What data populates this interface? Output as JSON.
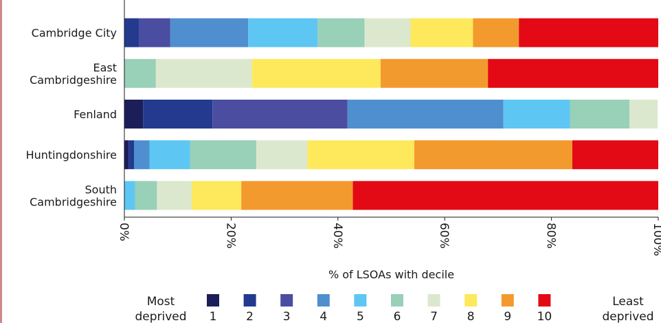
{
  "chart_data": {
    "type": "bar",
    "orientation": "horizontal",
    "stacked": true,
    "categories": [
      [
        "Cambridge City"
      ],
      [
        "East",
        "Cambridgeshire"
      ],
      [
        "Fenland"
      ],
      [
        "Huntingdonshire"
      ],
      [
        "South",
        "Cambridgeshire"
      ]
    ],
    "series": [
      {
        "name": "1",
        "color": "#1c1e5a",
        "values": [
          0,
          0,
          3.5,
          0.8,
          0
        ]
      },
      {
        "name": "2",
        "color": "#233a8f",
        "values": [
          2.8,
          0,
          13.0,
          1.0,
          0
        ]
      },
      {
        "name": "3",
        "color": "#4b4da1",
        "values": [
          5.8,
          0,
          25.3,
          0,
          0
        ]
      },
      {
        "name": "4",
        "color": "#4f8fcf",
        "values": [
          14.6,
          0,
          29.2,
          2.9,
          0
        ]
      },
      {
        "name": "5",
        "color": "#5ec6f3",
        "values": [
          13.0,
          0,
          12.5,
          7.6,
          2.0
        ]
      },
      {
        "name": "6",
        "color": "#98d0b8",
        "values": [
          8.8,
          5.9,
          11.1,
          12.4,
          4.1
        ]
      },
      {
        "name": "7",
        "color": "#dce8cd",
        "values": [
          8.6,
          18.0,
          5.3,
          9.6,
          6.5
        ]
      },
      {
        "name": "8",
        "color": "#fde95b",
        "values": [
          11.7,
          24.1,
          0,
          20.0,
          9.3
        ]
      },
      {
        "name": "9",
        "color": "#f39a2e",
        "values": [
          8.6,
          20.1,
          0,
          29.6,
          20.9
        ]
      },
      {
        "name": "10",
        "color": "#e30a15",
        "values": [
          26.1,
          31.9,
          0,
          16.1,
          57.2
        ]
      }
    ],
    "x_ticks": [
      "0%",
      "20%",
      "40%",
      "60%",
      "80%",
      "100%"
    ],
    "x_tick_values": [
      0,
      20,
      40,
      60,
      80,
      100
    ],
    "xlim": [
      0,
      100
    ],
    "xlabel": "% of LSOAs with decile",
    "grid": false,
    "legend": {
      "placement": "bottom",
      "left_label": [
        "Most",
        "deprived"
      ],
      "right_label": [
        "Least",
        "deprived"
      ]
    }
  }
}
